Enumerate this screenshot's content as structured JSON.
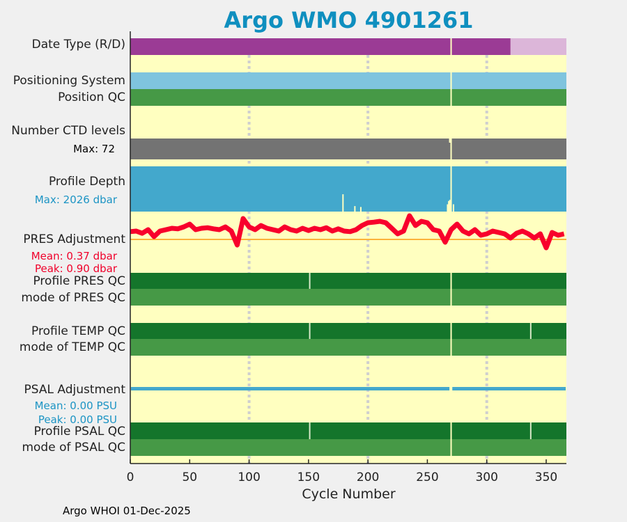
{
  "title": "Argo WMO 4901261",
  "footer": "Argo WHOI 01-Dec-2025",
  "labels": {
    "date_type": "Date Type (R/D)",
    "positioning_system": "Positioning System",
    "position_qc": "Position QC",
    "ctd_levels": "Number CTD levels",
    "ctd_max": "Max: 72",
    "profile_depth": "Profile Depth",
    "depth_max": "Max: 2026 dbar",
    "pres_adj": "PRES Adjustment",
    "pres_mean": "Mean: 0.37 dbar",
    "pres_peak": "Peak: 0.90 dbar",
    "pres_qc": "Profile PRES QC",
    "pres_mode": "mode of PRES QC",
    "temp_qc": "Profile TEMP QC",
    "temp_mode": "mode of TEMP QC",
    "psal_adj": "PSAL Adjustment",
    "psal_mean": "Mean: 0.00 PSU",
    "psal_peak": "Peak: 0.00 PSU",
    "psal_qc": "Profile PSAL QC",
    "psal_mode": "mode of PSAL QC"
  },
  "chart_data": {
    "type": "bar",
    "xlabel": "Cycle Number",
    "xlim": [
      0,
      367
    ],
    "xticks": [
      "0",
      "50",
      "100",
      "150",
      "200",
      "250",
      "300",
      "350"
    ],
    "grid_x": [
      100,
      200,
      300
    ],
    "missing_cycles": [
      270
    ],
    "date_type": {
      "delayed_until": 320,
      "colors": {
        "D": "#9b3b95",
        "R": "#dcb6d9"
      }
    },
    "positioning_color": "#7fc4de",
    "qc_colors": {
      "profile": "#14752b",
      "mode": "#469946"
    },
    "qc_breaks": {
      "pres": [
        151
      ],
      "temp": [
        151,
        337
      ],
      "psal": [
        151,
        337
      ]
    },
    "ctd_levels_max": 72,
    "profile_depth": {
      "max": 2026,
      "shallow": [
        [
          179,
          1250
        ],
        [
          189,
          1780
        ],
        [
          194,
          1820
        ],
        [
          267,
          1700
        ],
        [
          268,
          1550
        ],
        [
          269,
          1500
        ],
        [
          272,
          1700
        ]
      ]
    },
    "pres_adjustment": {
      "step": 5,
      "values": [
        0.28,
        0.3,
        0.22,
        0.35,
        0.1,
        0.3,
        0.35,
        0.4,
        0.38,
        0.45,
        0.55,
        0.35,
        0.4,
        0.42,
        0.38,
        0.35,
        0.45,
        0.3,
        -0.2,
        0.75,
        0.45,
        0.35,
        0.5,
        0.4,
        0.35,
        0.3,
        0.45,
        0.35,
        0.3,
        0.4,
        0.32,
        0.4,
        0.35,
        0.42,
        0.3,
        0.38,
        0.3,
        0.28,
        0.35,
        0.5,
        0.6,
        0.62,
        0.65,
        0.6,
        0.4,
        0.2,
        0.3,
        0.85,
        0.5,
        0.65,
        0.6,
        0.35,
        0.3,
        -0.1,
        0.35,
        0.55,
        0.3,
        0.2,
        0.35,
        0.15,
        0.2,
        0.3,
        0.25,
        0.2,
        0.05,
        0.22,
        0.3,
        0.2,
        0.05,
        0.2,
        -0.3,
        0.25,
        0.15,
        0.2
      ],
      "reference": 0,
      "mean": 0.37,
      "peak": 0.9
    },
    "psal_adjustment": {
      "value": 0.0
    }
  }
}
